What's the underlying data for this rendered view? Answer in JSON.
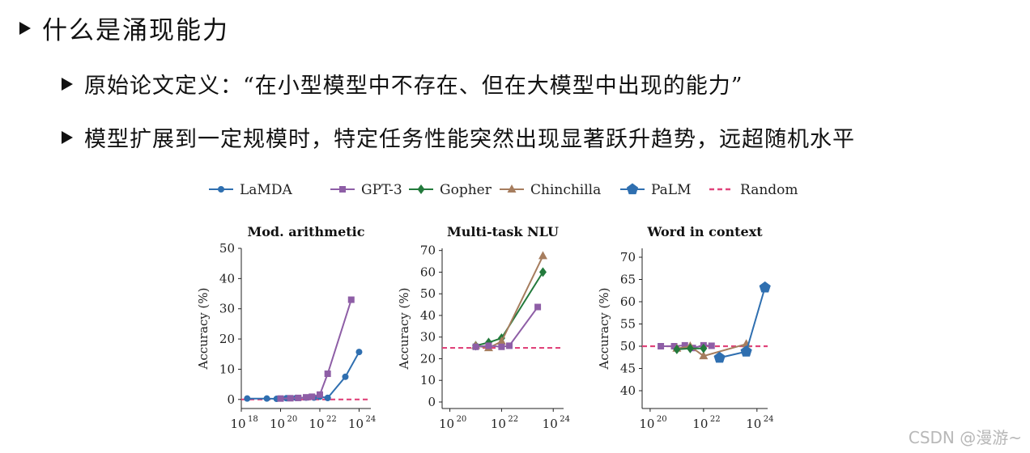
{
  "bullets": [
    "什么是涌现能力",
    "原始论文定义：“在小型模型中不存在、但在大模型中出现的能力”",
    "模型扩展到一定规模时，特定任务性能突然出现显著跃升趋势，远超随机水平"
  ],
  "watermark": "CSDN @漫游~",
  "legend": [
    {
      "name": "LaMDA",
      "color": "#2f6fb0",
      "marker": "circle"
    },
    {
      "name": "GPT-3",
      "color": "#8e5ea6",
      "marker": "square"
    },
    {
      "name": "Gopher",
      "color": "#237a3c",
      "marker": "diamond"
    },
    {
      "name": "Chinchilla",
      "color": "#a67d5e",
      "marker": "triangle"
    },
    {
      "name": "PaLM",
      "color": "#2f6fb0",
      "marker": "pentagon"
    },
    {
      "name": "Random",
      "color": "#e0447b",
      "marker": "dash"
    }
  ],
  "chart_data": [
    {
      "type": "line",
      "title": "Mod. arithmetic",
      "ylabel": "Accuracy (%)",
      "xscale": "log",
      "xlim": [
        18,
        24.6
      ],
      "ylim": [
        -3,
        50
      ],
      "yticks": [
        0,
        10,
        20,
        30,
        40,
        50
      ],
      "xticks": [
        18,
        20,
        22,
        24
      ],
      "xticklabels": [
        "10",
        "10",
        "10",
        "10"
      ],
      "xtickexps": [
        "18",
        "20",
        "22",
        "24"
      ],
      "random": 0,
      "series": [
        {
          "name": "LaMDA",
          "x": [
            18.3,
            19.3,
            19.8,
            20.3,
            20.8,
            21.3,
            21.7,
            22.0,
            22.4
          ],
          "y": [
            0.3,
            0.3,
            0.2,
            0.4,
            0.5,
            0.6,
            0.6,
            0.9,
            0.5
          ]
        },
        {
          "name": "GPT-3",
          "x": [
            20.0,
            20.5,
            20.9,
            21.3,
            21.6,
            22.0,
            22.4,
            23.6
          ],
          "y": [
            0.3,
            0.4,
            0.5,
            0.7,
            0.9,
            1.6,
            8.5,
            33.0
          ]
        },
        {
          "name": "LaMDA",
          "x": [
            22.4,
            23.3,
            24.0
          ],
          "y": [
            0.5,
            7.5,
            15.7
          ]
        }
      ]
    },
    {
      "type": "line",
      "title": "Multi-task NLU",
      "ylabel": "Accuracy (%)",
      "xscale": "log",
      "xlim": [
        19.7,
        24.4
      ],
      "ylim": [
        -3,
        71
      ],
      "yticks": [
        0,
        10,
        20,
        30,
        40,
        50,
        60,
        70
      ],
      "xticks": [
        20,
        22,
        24
      ],
      "xticklabels": [
        "10",
        "10",
        "10"
      ],
      "xtickexps": [
        "20",
        "22",
        "24"
      ],
      "random": 25,
      "series": [
        {
          "name": "Gopher",
          "x": [
            21.0,
            21.5,
            22.0,
            23.6
          ],
          "y": [
            26,
            27.5,
            29.5,
            60
          ]
        },
        {
          "name": "Chinchilla",
          "x": [
            21.0,
            21.5,
            22.0,
            23.6
          ],
          "y": [
            26,
            25,
            28,
            67.5
          ]
        },
        {
          "name": "GPT-3",
          "x": [
            21.0,
            21.5,
            22.0,
            22.3,
            23.4
          ],
          "y": [
            25.5,
            26,
            25.5,
            26,
            43.9
          ]
        }
      ]
    },
    {
      "type": "line",
      "title": "Word in context",
      "ylabel": "Accuracy (%)",
      "xscale": "log",
      "xlim": [
        19.7,
        24.4
      ],
      "ylim": [
        36,
        72
      ],
      "yticks": [
        40,
        45,
        50,
        55,
        60,
        65,
        70
      ],
      "xticks": [
        20,
        22,
        24
      ],
      "xticklabels": [
        "10",
        "10",
        "10"
      ],
      "xtickexps": [
        "20",
        "22",
        "24"
      ],
      "random": 50,
      "series": [
        {
          "name": "GPT-3",
          "x": [
            20.4,
            20.9,
            21.3,
            21.6,
            22.0,
            22.3
          ],
          "y": [
            50,
            50,
            50.2,
            49.6,
            50.2,
            50.1
          ]
        },
        {
          "name": "Chinchilla",
          "x": [
            21.0,
            21.5,
            22.0,
            23.6
          ],
          "y": [
            49.5,
            50,
            47.8,
            50.5
          ]
        },
        {
          "name": "Gopher",
          "x": [
            21.0,
            21.5,
            22.0
          ],
          "y": [
            49.3,
            49.5,
            49.5
          ]
        },
        {
          "name": "PaLM",
          "x": [
            22.6,
            23.6,
            24.3
          ],
          "y": [
            47.4,
            48.8,
            63.2
          ]
        }
      ]
    }
  ]
}
